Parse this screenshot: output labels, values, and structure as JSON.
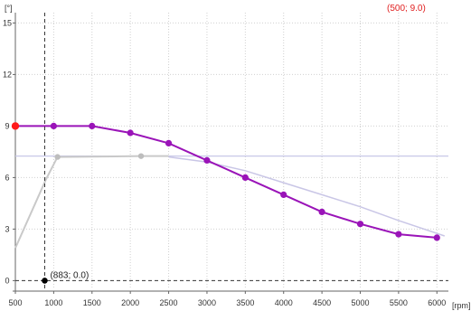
{
  "readouts": {
    "top_right": "(500; 9.0)",
    "cursor": "(883; 0.0)"
  },
  "colors": {
    "primary_curve": "#9a14b8",
    "selected_point": "#ff1a1a",
    "cursor_point": "#000000",
    "readout_text": "#e02020",
    "reference_hline": "#c8c8e8",
    "lavender_curve": "#c9c6e6",
    "gray_curve": "#c9c9c9"
  },
  "chart_data": {
    "type": "line",
    "x_unit_label": "[rpm]",
    "y_unit_label": "[°]",
    "xlim": [
      500,
      6150
    ],
    "ylim": [
      -0.4,
      15.6
    ],
    "x_ticks": [
      500,
      1000,
      1500,
      2000,
      2500,
      3000,
      3500,
      4000,
      4500,
      5000,
      5500,
      6000
    ],
    "y_ticks": [
      0,
      3,
      6,
      9,
      12,
      15
    ],
    "grid": true,
    "series": [
      {
        "style": "primary",
        "x": [
          500,
          1000,
          1500,
          2000,
          2500,
          3000,
          3500,
          4000,
          4500,
          5000,
          5500,
          6000
        ],
        "y": [
          9.0,
          9.0,
          9.0,
          8.6,
          8.0,
          7.0,
          6.0,
          5.0,
          4.0,
          3.3,
          2.7,
          2.5
        ]
      },
      {
        "style": "gray",
        "x": [
          500,
          900,
          1050,
          2140,
          2500
        ],
        "y": [
          1.9,
          5.9,
          7.2,
          7.25,
          7.25
        ],
        "marker_x": [
          1050,
          2140
        ]
      },
      {
        "style": "lavender",
        "x": [
          2500,
          3000,
          3500,
          4000,
          4500,
          5000,
          5500,
          6100
        ],
        "y": [
          7.2,
          6.9,
          6.4,
          5.7,
          5.0,
          4.3,
          3.5,
          2.6
        ]
      }
    ],
    "reference_hline_y": 7.25,
    "selected_point": {
      "x": 500,
      "y": 9.0
    },
    "cursor": {
      "x": 883,
      "y": 0.0
    }
  }
}
